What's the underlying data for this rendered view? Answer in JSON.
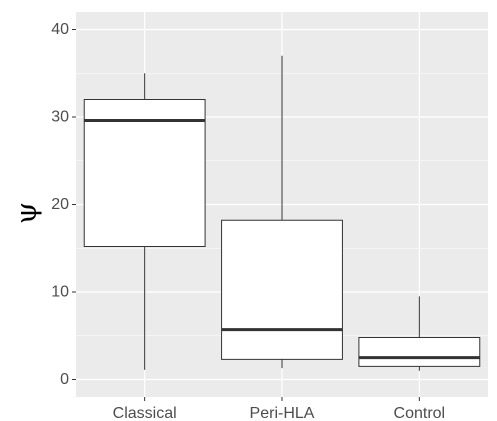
{
  "chart_data": {
    "type": "boxplot",
    "title": "",
    "xlabel": "",
    "ylabel": "ψ",
    "ylim": [
      -2,
      42
    ],
    "yticks": [
      0,
      10,
      20,
      30,
      40
    ],
    "ytick_labels": [
      "0",
      "10",
      "20",
      "30",
      "40"
    ],
    "grid": true,
    "categories": [
      "Classical",
      "Peri-HLA",
      "Control"
    ],
    "boxes": [
      {
        "category": "Classical",
        "whisker_low": 1.1,
        "q1": 15.2,
        "median": 29.6,
        "q3": 32.0,
        "whisker_high": 35.0
      },
      {
        "category": "Peri-HLA",
        "whisker_low": 1.3,
        "q1": 2.3,
        "median": 5.7,
        "q3": 18.2,
        "whisker_high": 37.0
      },
      {
        "category": "Control",
        "whisker_low": 1.0,
        "q1": 1.5,
        "median": 2.5,
        "q3": 4.8,
        "whisker_high": 9.5
      }
    ],
    "colors": {
      "panel_background": "#ebebeb",
      "grid_major": "#ffffff",
      "box_fill": "#ffffff",
      "box_stroke": "#333333",
      "tick_text": "#4d4d4d"
    }
  }
}
